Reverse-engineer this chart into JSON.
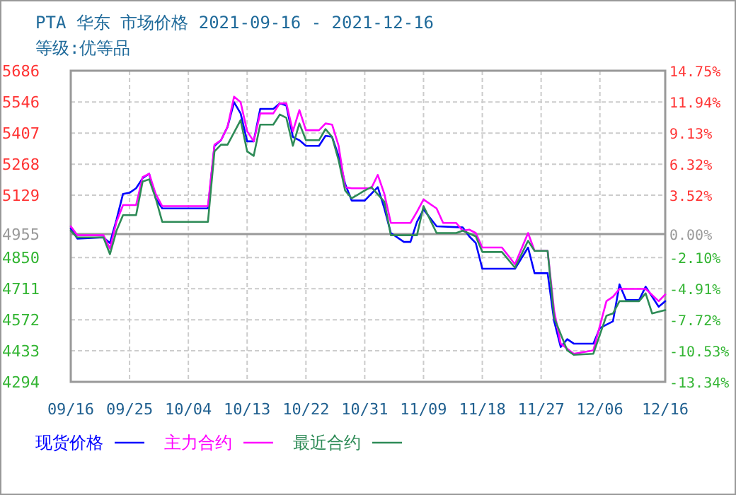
{
  "chart_data": {
    "type": "line",
    "title": "PTA 华东 市场价格 2021-09-16 - 2021-12-16",
    "subtitle": "等级:优等品",
    "xlim": [
      "2021-09-16",
      "2021-12-16"
    ],
    "xticks": [
      {
        "value": "2021-09-16",
        "label": "09/16"
      },
      {
        "value": "2021-09-25",
        "label": "09/25"
      },
      {
        "value": "2021-10-04",
        "label": "10/04"
      },
      {
        "value": "2021-10-13",
        "label": "10/13"
      },
      {
        "value": "2021-10-22",
        "label": "10/22"
      },
      {
        "value": "2021-10-31",
        "label": "10/31"
      },
      {
        "value": "2021-11-09",
        "label": "11/09"
      },
      {
        "value": "2021-11-18",
        "label": "11/18"
      },
      {
        "value": "2021-11-27",
        "label": "11/27"
      },
      {
        "value": "2021-12-06",
        "label": "12/06"
      },
      {
        "value": "2021-12-16",
        "label": "12/16"
      }
    ],
    "ylim": [
      4294,
      5686
    ],
    "yticks": [
      4294,
      4433,
      4572,
      4711,
      4850,
      4955,
      5129,
      5268,
      5407,
      5546,
      5686
    ],
    "y2lim": [
      -13.34,
      14.75
    ],
    "y2ticks": [
      {
        "value": -13.34,
        "label": "-13.34%"
      },
      {
        "value": -10.53,
        "label": "-10.53%"
      },
      {
        "value": -7.72,
        "label": "-7.72%"
      },
      {
        "value": -4.91,
        "label": "-4.91%"
      },
      {
        "value": -2.1,
        "label": "-2.10%"
      },
      {
        "value": 0,
        "label": "0.00%"
      },
      {
        "value": 3.52,
        "label": "3.52%"
      },
      {
        "value": 6.32,
        "label": "6.32%"
      },
      {
        "value": 9.13,
        "label": "9.13%"
      },
      {
        "value": 11.94,
        "label": "11.94%"
      },
      {
        "value": 14.75,
        "label": "14.75%"
      }
    ],
    "ref_lines": [
      {
        "axis": "y",
        "value": 4955,
        "color": "#999999"
      }
    ],
    "grid": true,
    "legend": "bottom",
    "series": [
      {
        "name": "现货价格",
        "color": "#0000ff",
        "x": [
          "2021-09-16",
          "2021-09-17",
          "2021-09-21",
          "2021-09-22",
          "2021-09-23",
          "2021-09-24",
          "2021-09-25",
          "2021-09-26",
          "2021-09-27",
          "2021-09-28",
          "2021-09-29",
          "2021-09-30",
          "2021-10-07",
          "2021-10-08",
          "2021-10-09",
          "2021-10-10",
          "2021-10-11",
          "2021-10-12",
          "2021-10-13",
          "2021-10-14",
          "2021-10-15",
          "2021-10-17",
          "2021-10-18",
          "2021-10-19",
          "2021-10-20",
          "2021-10-21",
          "2021-10-22",
          "2021-10-24",
          "2021-10-25",
          "2021-10-26",
          "2021-10-27",
          "2021-10-28",
          "2021-10-29",
          "2021-10-31",
          "2021-11-02",
          "2021-11-03",
          "2021-11-04",
          "2021-11-06",
          "2021-11-07",
          "2021-11-08",
          "2021-11-09",
          "2021-11-11",
          "2021-11-15",
          "2021-11-16",
          "2021-11-17",
          "2021-11-18",
          "2021-11-23",
          "2021-11-25",
          "2021-11-26",
          "2021-11-28",
          "2021-11-29",
          "2021-11-30",
          "2021-12-01",
          "2021-12-02",
          "2021-12-05",
          "2021-12-06",
          "2021-12-08",
          "2021-12-09",
          "2021-12-10",
          "2021-12-12",
          "2021-12-13",
          "2021-12-15",
          "2021-12-16"
        ],
        "values": [
          4980,
          4935,
          4940,
          4915,
          5020,
          5135,
          5140,
          5160,
          5205,
          5225,
          5115,
          5070,
          5070,
          5350,
          5375,
          5435,
          5545,
          5495,
          5370,
          5370,
          5515,
          5515,
          5540,
          5530,
          5390,
          5375,
          5350,
          5350,
          5395,
          5390,
          5305,
          5180,
          5105,
          5105,
          5165,
          5070,
          4960,
          4920,
          4920,
          5010,
          5065,
          4990,
          4985,
          4945,
          4915,
          4800,
          4800,
          4895,
          4780,
          4780,
          4565,
          4450,
          4485,
          4465,
          4465,
          4535,
          4565,
          4730,
          4660,
          4660,
          4720,
          4630,
          4655
        ]
      },
      {
        "name": "主力合约",
        "color": "#ff00ff",
        "x": [
          "2021-09-16",
          "2021-09-17",
          "2021-09-21",
          "2021-09-22",
          "2021-09-23",
          "2021-09-24",
          "2021-09-26",
          "2021-09-27",
          "2021-09-28",
          "2021-09-29",
          "2021-09-30",
          "2021-10-07",
          "2021-10-08",
          "2021-10-09",
          "2021-10-10",
          "2021-10-11",
          "2021-10-12",
          "2021-10-13",
          "2021-10-14",
          "2021-10-15",
          "2021-10-17",
          "2021-10-18",
          "2021-10-19",
          "2021-10-20",
          "2021-10-21",
          "2021-10-22",
          "2021-10-24",
          "2021-10-25",
          "2021-10-26",
          "2021-10-27",
          "2021-10-28",
          "2021-10-29",
          "2021-11-01",
          "2021-11-02",
          "2021-11-03",
          "2021-11-04",
          "2021-11-07",
          "2021-11-08",
          "2021-11-09",
          "2021-11-11",
          "2021-11-12",
          "2021-11-14",
          "2021-11-15",
          "2021-11-16",
          "2021-11-17",
          "2021-11-18",
          "2021-11-21",
          "2021-11-23",
          "2021-11-25",
          "2021-11-26",
          "2021-11-28",
          "2021-11-29",
          "2021-11-30",
          "2021-12-02",
          "2021-12-05",
          "2021-12-07",
          "2021-12-08",
          "2021-12-09",
          "2021-12-13",
          "2021-12-15",
          "2021-12-16"
        ],
        "values": [
          4990,
          4950,
          4950,
          4890,
          5010,
          5085,
          5085,
          5210,
          5225,
          5135,
          5080,
          5080,
          5355,
          5375,
          5435,
          5570,
          5545,
          5415,
          5370,
          5495,
          5495,
          5540,
          5540,
          5415,
          5510,
          5420,
          5420,
          5450,
          5445,
          5350,
          5165,
          5160,
          5160,
          5220,
          5135,
          5005,
          5005,
          5055,
          5110,
          5070,
          5005,
          5005,
          4970,
          4975,
          4960,
          4895,
          4895,
          4820,
          4960,
          4880,
          4880,
          4610,
          4465,
          4420,
          4435,
          4655,
          4675,
          4710,
          4710,
          4655,
          4685
        ]
      },
      {
        "name": "最近合约",
        "color": "#2e8b57",
        "x": [
          "2021-09-16",
          "2021-09-17",
          "2021-09-21",
          "2021-09-22",
          "2021-09-23",
          "2021-09-24",
          "2021-09-26",
          "2021-09-27",
          "2021-09-28",
          "2021-09-29",
          "2021-09-30",
          "2021-10-07",
          "2021-10-08",
          "2021-10-09",
          "2021-10-10",
          "2021-10-12",
          "2021-10-13",
          "2021-10-14",
          "2021-10-15",
          "2021-10-17",
          "2021-10-18",
          "2021-10-19",
          "2021-10-20",
          "2021-10-21",
          "2021-10-22",
          "2021-10-24",
          "2021-10-25",
          "2021-10-26",
          "2021-10-27",
          "2021-10-28",
          "2021-10-29",
          "2021-10-31",
          "2021-11-01",
          "2021-11-03",
          "2021-11-04",
          "2021-11-08",
          "2021-11-09",
          "2021-11-11",
          "2021-11-14",
          "2021-11-15",
          "2021-11-17",
          "2021-11-18",
          "2021-11-21",
          "2021-11-23",
          "2021-11-25",
          "2021-11-26",
          "2021-11-28",
          "2021-11-29",
          "2021-12-01",
          "2021-12-02",
          "2021-12-05",
          "2021-12-07",
          "2021-12-08",
          "2021-12-09",
          "2021-12-12",
          "2021-12-13",
          "2021-12-14",
          "2021-12-16"
        ],
        "values": [
          4970,
          4940,
          4940,
          4865,
          4970,
          5040,
          5040,
          5190,
          5200,
          5115,
          5010,
          5010,
          5325,
          5355,
          5355,
          5465,
          5325,
          5305,
          5445,
          5445,
          5490,
          5475,
          5350,
          5450,
          5375,
          5375,
          5425,
          5390,
          5285,
          5150,
          5115,
          5150,
          5165,
          5100,
          4950,
          4950,
          5080,
          4960,
          4960,
          4970,
          4945,
          4875,
          4875,
          4805,
          4925,
          4880,
          4880,
          4580,
          4435,
          4415,
          4420,
          4590,
          4600,
          4655,
          4655,
          4690,
          4600,
          4615
        ]
      }
    ]
  }
}
